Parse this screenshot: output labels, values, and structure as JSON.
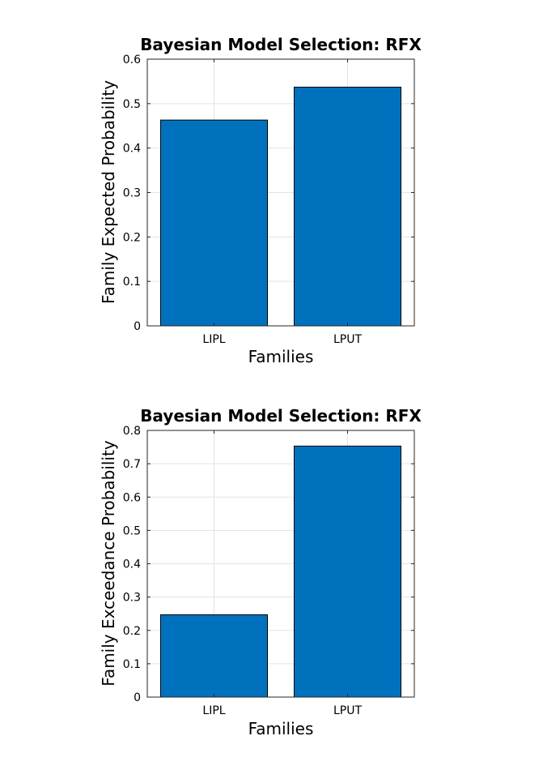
{
  "chart_data": [
    {
      "type": "bar",
      "title": "Bayesian Model Selection: RFX",
      "xlabel": "Families",
      "ylabel": "Family Expected Probability",
      "categories": [
        "LIPL",
        "LPUT"
      ],
      "values": [
        0.463,
        0.537
      ],
      "ylim": [
        0,
        0.6
      ],
      "yticks": [
        "0",
        "0.1",
        "0.2",
        "0.3",
        "0.4",
        "0.5",
        "0.6"
      ],
      "grid": true,
      "bar_color": "#0072BD"
    },
    {
      "type": "bar",
      "title": "Bayesian Model Selection: RFX",
      "xlabel": "Families",
      "ylabel": "Family Exceedance Probability",
      "categories": [
        "LIPL",
        "LPUT"
      ],
      "values": [
        0.247,
        0.753
      ],
      "ylim": [
        0,
        0.8
      ],
      "yticks": [
        "0",
        "0.1",
        "0.2",
        "0.3",
        "0.4",
        "0.5",
        "0.6",
        "0.7",
        "0.8"
      ],
      "grid": true,
      "bar_color": "#0072BD"
    }
  ]
}
